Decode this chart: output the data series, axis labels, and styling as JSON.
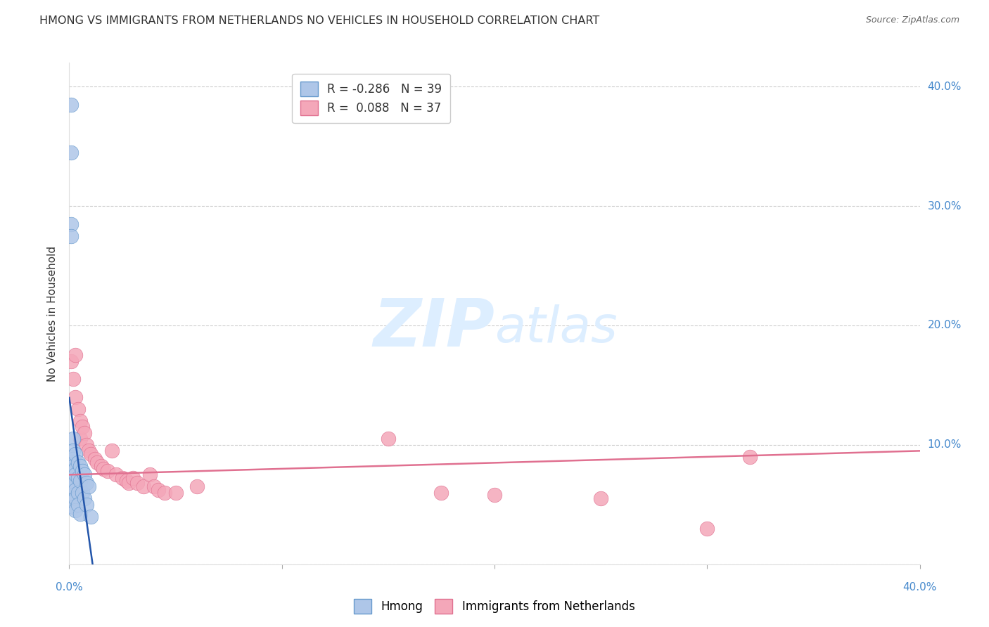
{
  "title": "HMONG VS IMMIGRANTS FROM NETHERLANDS NO VEHICLES IN HOUSEHOLD CORRELATION CHART",
  "source": "Source: ZipAtlas.com",
  "ylabel": "No Vehicles in Household",
  "xlim": [
    0.0,
    0.4
  ],
  "ylim": [
    0.0,
    0.42
  ],
  "yticks": [
    0.0,
    0.1,
    0.2,
    0.3,
    0.4
  ],
  "xticks": [
    0.0,
    0.1,
    0.2,
    0.3,
    0.4
  ],
  "hmong_color": "#aec6e8",
  "hmong_edge_color": "#6699cc",
  "netherlands_color": "#f4a7b9",
  "netherlands_edge_color": "#e07090",
  "hmong_line_color": "#2255aa",
  "netherlands_line_color": "#e07090",
  "watermark_color": "#ddeeff",
  "hmong_x": [
    0.001,
    0.001,
    0.001,
    0.001,
    0.001,
    0.001,
    0.001,
    0.001,
    0.001,
    0.001,
    0.002,
    0.002,
    0.002,
    0.002,
    0.002,
    0.002,
    0.002,
    0.002,
    0.003,
    0.003,
    0.003,
    0.003,
    0.003,
    0.003,
    0.004,
    0.004,
    0.004,
    0.004,
    0.005,
    0.005,
    0.005,
    0.006,
    0.006,
    0.007,
    0.007,
    0.008,
    0.008,
    0.009,
    0.01
  ],
  "hmong_y": [
    0.385,
    0.345,
    0.285,
    0.275,
    0.09,
    0.085,
    0.075,
    0.07,
    0.065,
    0.055,
    0.105,
    0.095,
    0.088,
    0.082,
    0.078,
    0.068,
    0.058,
    0.048,
    0.092,
    0.08,
    0.075,
    0.062,
    0.055,
    0.045,
    0.085,
    0.072,
    0.06,
    0.05,
    0.082,
    0.07,
    0.042,
    0.078,
    0.06,
    0.075,
    0.055,
    0.068,
    0.05,
    0.065,
    0.04
  ],
  "netherlands_x": [
    0.001,
    0.002,
    0.003,
    0.003,
    0.004,
    0.005,
    0.005,
    0.006,
    0.007,
    0.008,
    0.009,
    0.01,
    0.012,
    0.013,
    0.015,
    0.016,
    0.018,
    0.02,
    0.022,
    0.025,
    0.027,
    0.028,
    0.03,
    0.032,
    0.035,
    0.038,
    0.04,
    0.042,
    0.045,
    0.05,
    0.06,
    0.15,
    0.32,
    0.175,
    0.2,
    0.25,
    0.3
  ],
  "netherlands_y": [
    0.17,
    0.155,
    0.14,
    0.175,
    0.13,
    0.12,
    0.105,
    0.115,
    0.11,
    0.1,
    0.095,
    0.092,
    0.088,
    0.085,
    0.082,
    0.08,
    0.078,
    0.095,
    0.075,
    0.072,
    0.07,
    0.068,
    0.072,
    0.068,
    0.065,
    0.075,
    0.065,
    0.062,
    0.06,
    0.06,
    0.065,
    0.105,
    0.09,
    0.06,
    0.058,
    0.055,
    0.03
  ]
}
